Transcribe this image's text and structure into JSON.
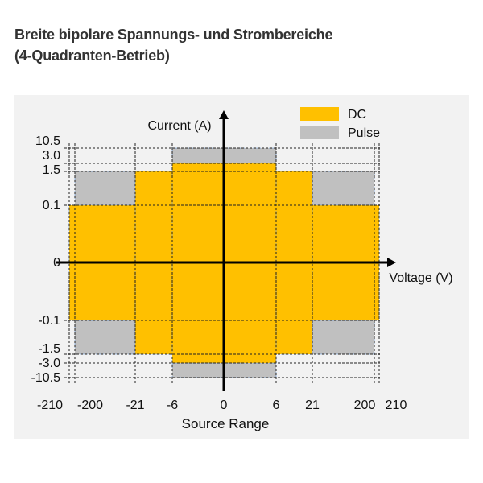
{
  "title": {
    "line1": "Breite bipolare Spannungs- und Strombereiche",
    "line2": "(4-Quadranten-Betrieb)"
  },
  "chart_data": {
    "type": "area",
    "xlabel": "Voltage (V)",
    "ylabel": "Current (A)",
    "x_axis_title": "Source Range",
    "x_ticks": [
      -210,
      -200,
      -21,
      -6,
      0,
      6,
      21,
      200,
      210
    ],
    "x_tick_labels": [
      "-210",
      "-200",
      "-21",
      "-6",
      "0",
      "6",
      "21",
      "200",
      "210"
    ],
    "y_ticks": [
      10.5,
      3.0,
      1.5,
      0.1,
      0,
      -0.1,
      -1.5,
      -3.0,
      -10.5
    ],
    "y_tick_labels": [
      "10.5",
      "3.0",
      "1.5",
      "0.1",
      "0",
      "-0.1",
      "-1.5",
      "-3.0",
      "-10.5"
    ],
    "scale": "non-linear (tick-spaced)",
    "grid": true,
    "legend_placement": "top-right",
    "series": [
      {
        "name": "DC",
        "color": "#ffc000",
        "regions": [
          {
            "v": [
              -210,
              210
            ],
            "i": [
              -0.1,
              0.1
            ]
          },
          {
            "v": [
              -21,
              21
            ],
            "i": [
              -1.5,
              1.5
            ]
          },
          {
            "v": [
              -6,
              6
            ],
            "i": [
              -3.0,
              3.0
            ]
          }
        ]
      },
      {
        "name": "Pulse",
        "color": "#c0c0c0",
        "regions": [
          {
            "v": [
              -200,
              -21
            ],
            "i": [
              0.1,
              1.5
            ]
          },
          {
            "v": [
              21,
              200
            ],
            "i": [
              0.1,
              1.5
            ]
          },
          {
            "v": [
              -200,
              -21
            ],
            "i": [
              -1.5,
              -0.1
            ]
          },
          {
            "v": [
              21,
              200
            ],
            "i": [
              -1.5,
              -0.1
            ]
          },
          {
            "v": [
              -6,
              6
            ],
            "i": [
              3.0,
              10.5
            ]
          },
          {
            "v": [
              -6,
              6
            ],
            "i": [
              -10.5,
              -3.0
            ]
          }
        ]
      }
    ]
  }
}
